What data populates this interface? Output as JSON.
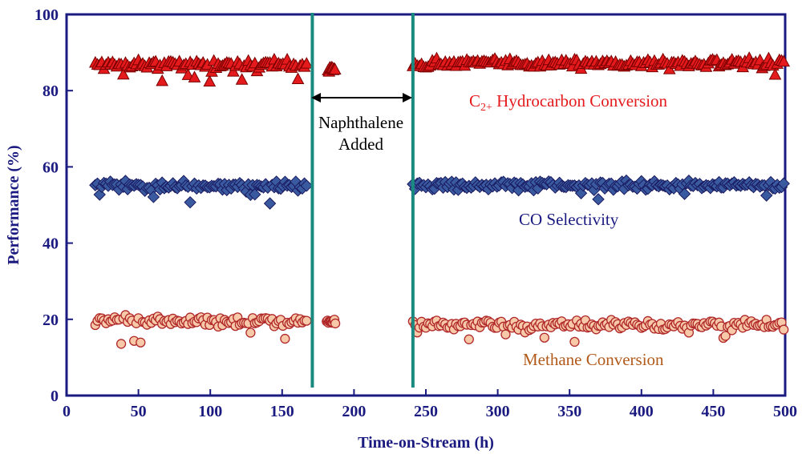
{
  "chart_data": {
    "type": "scatter",
    "xlabel": "Time-on-Stream (h)",
    "ylabel": "Performance (%)",
    "xlim": [
      0,
      500
    ],
    "ylim": [
      0,
      100
    ],
    "xticks": [
      0,
      50,
      100,
      150,
      200,
      250,
      300,
      350,
      400,
      450,
      500
    ],
    "yticks": [
      0,
      20,
      40,
      60,
      80,
      100
    ],
    "grid": false,
    "vlines": [
      171,
      241
    ],
    "colors": {
      "axis": "#1a1a80",
      "vline": "#1a8a80",
      "c2": "#e41a1c",
      "co": "#3a5aa0",
      "ch4": "#f7c9a8",
      "ch4_edge": "#b0282a"
    },
    "series": [
      {
        "name": "C2+ Hydrocarbon Conversion",
        "marker": "triangle",
        "color": "#e41a1c",
        "segments": [
          {
            "x_start": 20,
            "x_end": 168,
            "step": 1.5,
            "mean": 87,
            "amplitude": 1.8
          },
          {
            "x_start": 182,
            "x_end": 187,
            "step": 0.6,
            "mean": 85.5,
            "amplitude": 1.0
          },
          {
            "x_start": 241,
            "x_end": 500,
            "step": 1.5,
            "mean": 87.3,
            "amplitude": 1.6
          }
        ]
      },
      {
        "name": "CO Selectivity",
        "marker": "diamond",
        "color": "#3a5aa0",
        "segments": [
          {
            "x_start": 20,
            "x_end": 167,
            "step": 1.5,
            "mean": 55,
            "amplitude": 1.6
          },
          {
            "x_start": 241,
            "x_end": 500,
            "step": 1.5,
            "mean": 55.2,
            "amplitude": 1.5
          }
        ]
      },
      {
        "name": "Methane Conversion",
        "marker": "circle",
        "color": "#f7c9a8",
        "segments": [
          {
            "x_start": 20,
            "x_end": 168,
            "step": 1.5,
            "mean": 19.5,
            "amplitude": 2.0
          },
          {
            "x_start": 181,
            "x_end": 187,
            "step": 0.6,
            "mean": 19.5,
            "amplitude": 1.0
          },
          {
            "x_start": 241,
            "x_end": 500,
            "step": 1.5,
            "mean": 18.5,
            "amplitude": 1.8
          }
        ]
      }
    ],
    "annotations": {
      "c2_prefix": "C",
      "c2_sub": "2+",
      "c2_rest": " Hydrocarbon Conversion",
      "co": "CO Selectivity",
      "methane": "Methane Conversion",
      "naphthalene_line1": "Naphthalene",
      "naphthalene_line2": "Added"
    }
  }
}
